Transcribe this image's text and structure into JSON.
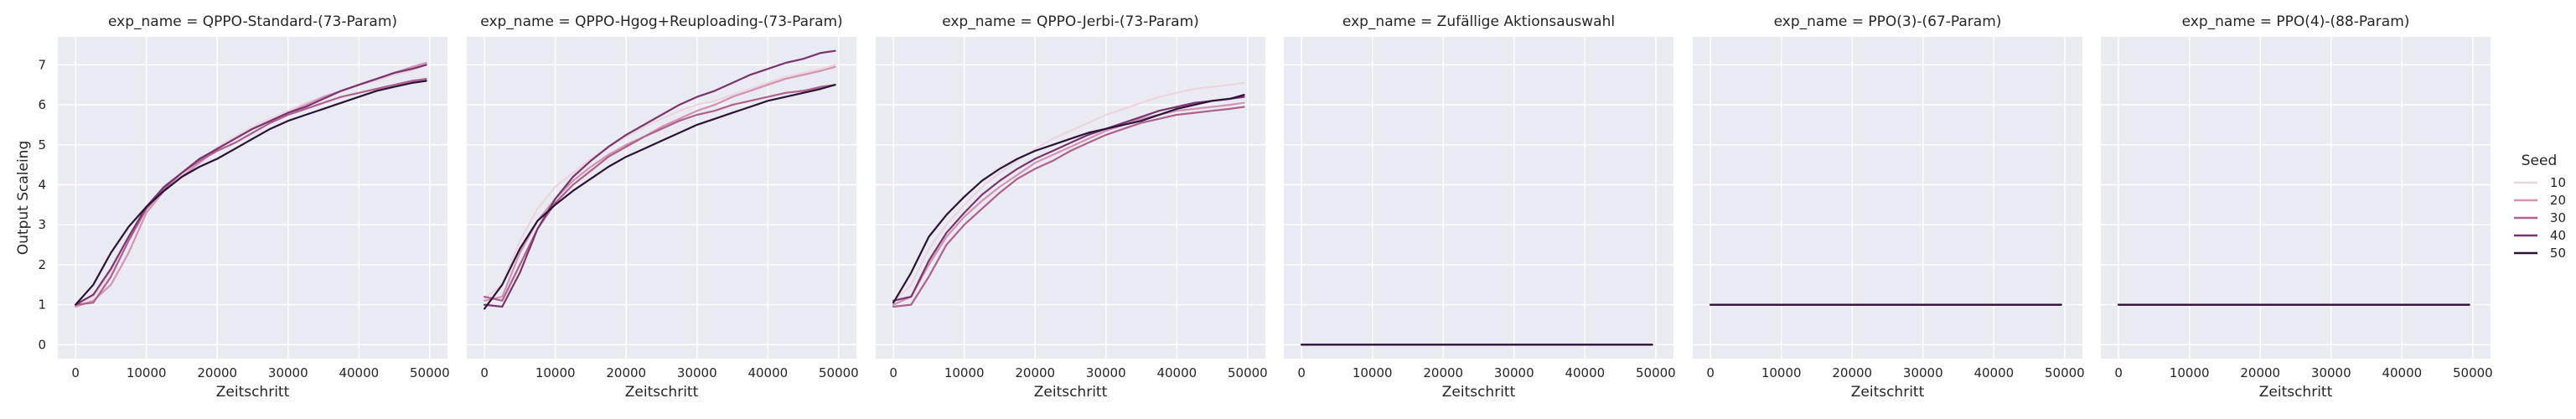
{
  "colors": {
    "panel_background": "#eaeaf2",
    "grid": "#ffffff",
    "text": "#262626"
  },
  "legend": {
    "title": "Seed",
    "placement": "right",
    "entries": [
      {
        "label": "10",
        "color": "#ebd5e1"
      },
      {
        "label": "20",
        "color": "#d394b3"
      },
      {
        "label": "30",
        "color": "#b0608e"
      },
      {
        "label": "40",
        "color": "#7a356f"
      },
      {
        "label": "50",
        "color": "#2a1336"
      }
    ]
  },
  "chart_data": {
    "type": "line",
    "layout": "facets",
    "shared_y": true,
    "grid": true,
    "xlabel": "Zeitschritt",
    "ylabel": "Output Scaleing",
    "xlim": [
      -2500,
      52500
    ],
    "ylim": [
      -0.35,
      7.7
    ],
    "xticks": [
      0,
      10000,
      20000,
      30000,
      40000,
      50000
    ],
    "yticks": [
      0,
      1,
      2,
      3,
      4,
      5,
      6,
      7
    ],
    "x": [
      0,
      2500,
      5000,
      7500,
      10000,
      12500,
      15000,
      17500,
      20000,
      22500,
      25000,
      27500,
      30000,
      32500,
      35000,
      37500,
      40000,
      42500,
      45000,
      47500,
      49500
    ],
    "panels": [
      {
        "title": "exp_name = QPPO-Standard-(73-Param)",
        "series": [
          {
            "name": "10",
            "values": [
              1.0,
              1.2,
              1.8,
              2.6,
              3.4,
              3.9,
              4.25,
              4.6,
              4.95,
              5.2,
              5.45,
              5.65,
              5.85,
              6.05,
              6.2,
              6.35,
              6.5,
              6.6,
              6.75,
              6.85,
              7.0
            ]
          },
          {
            "name": "20",
            "values": [
              0.95,
              1.1,
              1.5,
              2.3,
              3.3,
              3.85,
              4.2,
              4.55,
              4.9,
              5.15,
              5.4,
              5.6,
              5.8,
              6.0,
              6.2,
              6.35,
              6.5,
              6.65,
              6.8,
              6.95,
              7.05
            ]
          },
          {
            "name": "30",
            "values": [
              1.0,
              1.05,
              1.7,
              2.6,
              3.4,
              3.9,
              4.3,
              4.6,
              4.85,
              5.05,
              5.3,
              5.55,
              5.75,
              5.9,
              6.05,
              6.2,
              6.3,
              6.4,
              6.5,
              6.6,
              6.65
            ]
          },
          {
            "name": "40",
            "values": [
              1.0,
              1.25,
              1.9,
              2.7,
              3.45,
              3.95,
              4.3,
              4.65,
              4.9,
              5.15,
              5.4,
              5.6,
              5.8,
              5.95,
              6.15,
              6.35,
              6.5,
              6.65,
              6.8,
              6.9,
              7.0
            ]
          },
          {
            "name": "50",
            "values": [
              1.0,
              1.5,
              2.3,
              2.95,
              3.45,
              3.85,
              4.2,
              4.45,
              4.65,
              4.9,
              5.15,
              5.4,
              5.6,
              5.75,
              5.9,
              6.05,
              6.2,
              6.35,
              6.45,
              6.55,
              6.6
            ]
          }
        ]
      },
      {
        "title": "exp_name = QPPO-Hgog+Reuploading-(73-Param)",
        "series": [
          {
            "name": "10",
            "values": [
              1.15,
              1.5,
              2.6,
              3.4,
              3.95,
              4.3,
              4.65,
              4.95,
              5.2,
              5.45,
              5.65,
              5.85,
              6.0,
              6.1,
              6.25,
              6.4,
              6.55,
              6.7,
              6.8,
              6.9,
              7.0
            ]
          },
          {
            "name": "20",
            "values": [
              1.1,
              1.2,
              2.3,
              3.1,
              3.65,
              4.1,
              4.45,
              4.75,
              5.0,
              5.2,
              5.45,
              5.65,
              5.85,
              6.0,
              6.2,
              6.35,
              6.5,
              6.65,
              6.75,
              6.85,
              6.95
            ]
          },
          {
            "name": "30",
            "values": [
              1.2,
              1.1,
              2.0,
              2.9,
              3.55,
              4.0,
              4.35,
              4.7,
              4.95,
              5.2,
              5.4,
              5.6,
              5.75,
              5.85,
              6.0,
              6.1,
              6.2,
              6.3,
              6.35,
              6.45,
              6.5
            ]
          },
          {
            "name": "40",
            "values": [
              1.0,
              0.95,
              1.8,
              2.9,
              3.65,
              4.2,
              4.6,
              4.95,
              5.25,
              5.5,
              5.75,
              6.0,
              6.2,
              6.35,
              6.55,
              6.75,
              6.9,
              7.05,
              7.15,
              7.3,
              7.35
            ]
          },
          {
            "name": "50",
            "values": [
              0.9,
              1.5,
              2.4,
              3.1,
              3.5,
              3.85,
              4.15,
              4.45,
              4.7,
              4.9,
              5.1,
              5.3,
              5.5,
              5.65,
              5.8,
              5.95,
              6.1,
              6.2,
              6.3,
              6.4,
              6.5
            ]
          }
        ]
      },
      {
        "title": "exp_name = QPPO-Jerbi-(73-Param)",
        "series": [
          {
            "name": "10",
            "values": [
              1.05,
              1.5,
              2.4,
              3.0,
              3.5,
              3.95,
              4.3,
              4.6,
              4.9,
              5.15,
              5.35,
              5.55,
              5.75,
              5.9,
              6.05,
              6.2,
              6.3,
              6.4,
              6.45,
              6.5,
              6.55
            ]
          },
          {
            "name": "20",
            "values": [
              1.0,
              1.2,
              2.0,
              2.7,
              3.2,
              3.6,
              3.95,
              4.25,
              4.55,
              4.75,
              4.95,
              5.15,
              5.35,
              5.5,
              5.65,
              5.75,
              5.85,
              5.9,
              5.95,
              6.0,
              6.05
            ]
          },
          {
            "name": "30",
            "values": [
              0.95,
              1.0,
              1.7,
              2.5,
              3.0,
              3.4,
              3.8,
              4.15,
              4.4,
              4.6,
              4.85,
              5.05,
              5.25,
              5.4,
              5.55,
              5.65,
              5.75,
              5.8,
              5.85,
              5.9,
              5.95
            ]
          },
          {
            "name": "40",
            "values": [
              1.1,
              1.2,
              2.1,
              2.8,
              3.3,
              3.75,
              4.1,
              4.4,
              4.65,
              4.85,
              5.05,
              5.25,
              5.4,
              5.55,
              5.7,
              5.85,
              5.95,
              6.05,
              6.1,
              6.15,
              6.2
            ]
          },
          {
            "name": "50",
            "values": [
              1.05,
              1.8,
              2.7,
              3.25,
              3.7,
              4.1,
              4.4,
              4.65,
              4.85,
              5.0,
              5.15,
              5.3,
              5.4,
              5.5,
              5.6,
              5.75,
              5.9,
              6.0,
              6.1,
              6.15,
              6.25
            ]
          }
        ]
      },
      {
        "title": "exp_name = Zufällige Aktionsauswahl",
        "series": [
          {
            "name": "10",
            "values": [
              0,
              0,
              0,
              0,
              0,
              0,
              0,
              0,
              0,
              0,
              0,
              0,
              0,
              0,
              0,
              0,
              0,
              0,
              0,
              0,
              0
            ]
          },
          {
            "name": "20",
            "values": [
              0,
              0,
              0,
              0,
              0,
              0,
              0,
              0,
              0,
              0,
              0,
              0,
              0,
              0,
              0,
              0,
              0,
              0,
              0,
              0,
              0
            ]
          },
          {
            "name": "30",
            "values": [
              0,
              0,
              0,
              0,
              0,
              0,
              0,
              0,
              0,
              0,
              0,
              0,
              0,
              0,
              0,
              0,
              0,
              0,
              0,
              0,
              0
            ]
          },
          {
            "name": "40",
            "values": [
              0,
              0,
              0,
              0,
              0,
              0,
              0,
              0,
              0,
              0,
              0,
              0,
              0,
              0,
              0,
              0,
              0,
              0,
              0,
              0,
              0
            ]
          },
          {
            "name": "50",
            "values": [
              0,
              0,
              0,
              0,
              0,
              0,
              0,
              0,
              0,
              0,
              0,
              0,
              0,
              0,
              0,
              0,
              0,
              0,
              0,
              0,
              0
            ]
          }
        ]
      },
      {
        "title": "exp_name = PPO(3)-(67-Param)",
        "series": [
          {
            "name": "10",
            "values": [
              1,
              1,
              1,
              1,
              1,
              1,
              1,
              1,
              1,
              1,
              1,
              1,
              1,
              1,
              1,
              1,
              1,
              1,
              1,
              1,
              1
            ]
          },
          {
            "name": "20",
            "values": [
              1,
              1,
              1,
              1,
              1,
              1,
              1,
              1,
              1,
              1,
              1,
              1,
              1,
              1,
              1,
              1,
              1,
              1,
              1,
              1,
              1
            ]
          },
          {
            "name": "30",
            "values": [
              1,
              1,
              1,
              1,
              1,
              1,
              1,
              1,
              1,
              1,
              1,
              1,
              1,
              1,
              1,
              1,
              1,
              1,
              1,
              1,
              1
            ]
          },
          {
            "name": "40",
            "values": [
              1,
              1,
              1,
              1,
              1,
              1,
              1,
              1,
              1,
              1,
              1,
              1,
              1,
              1,
              1,
              1,
              1,
              1,
              1,
              1,
              1
            ]
          },
          {
            "name": "50",
            "values": [
              1,
              1,
              1,
              1,
              1,
              1,
              1,
              1,
              1,
              1,
              1,
              1,
              1,
              1,
              1,
              1,
              1,
              1,
              1,
              1,
              1
            ]
          }
        ]
      },
      {
        "title": "exp_name = PPO(4)-(88-Param)",
        "series": [
          {
            "name": "10",
            "values": [
              1,
              1,
              1,
              1,
              1,
              1,
              1,
              1,
              1,
              1,
              1,
              1,
              1,
              1,
              1,
              1,
              1,
              1,
              1,
              1,
              1
            ]
          },
          {
            "name": "20",
            "values": [
              1,
              1,
              1,
              1,
              1,
              1,
              1,
              1,
              1,
              1,
              1,
              1,
              1,
              1,
              1,
              1,
              1,
              1,
              1,
              1,
              1
            ]
          },
          {
            "name": "30",
            "values": [
              1,
              1,
              1,
              1,
              1,
              1,
              1,
              1,
              1,
              1,
              1,
              1,
              1,
              1,
              1,
              1,
              1,
              1,
              1,
              1,
              1
            ]
          },
          {
            "name": "40",
            "values": [
              1,
              1,
              1,
              1,
              1,
              1,
              1,
              1,
              1,
              1,
              1,
              1,
              1,
              1,
              1,
              1,
              1,
              1,
              1,
              1,
              1
            ]
          },
          {
            "name": "50",
            "values": [
              1,
              1,
              1,
              1,
              1,
              1,
              1,
              1,
              1,
              1,
              1,
              1,
              1,
              1,
              1,
              1,
              1,
              1,
              1,
              1,
              1
            ]
          }
        ]
      }
    ]
  }
}
